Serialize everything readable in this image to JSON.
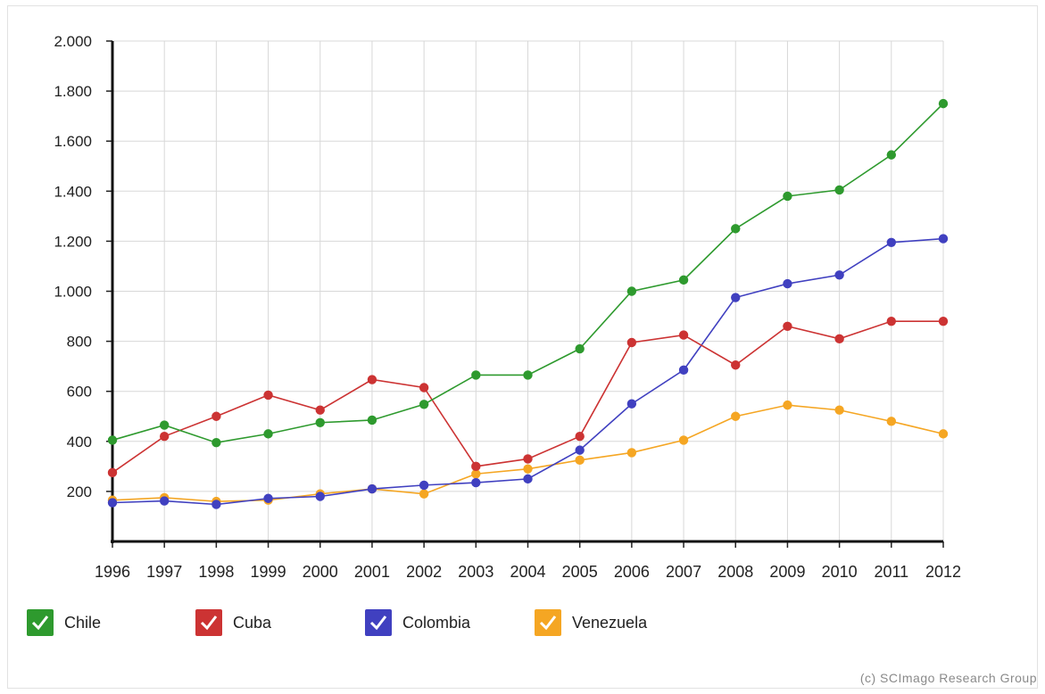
{
  "chart_data": {
    "type": "line",
    "x": [
      "1996",
      "1997",
      "1998",
      "1999",
      "2000",
      "2001",
      "2002",
      "2003",
      "2004",
      "2005",
      "2006",
      "2007",
      "2008",
      "2009",
      "2010",
      "2011",
      "2012"
    ],
    "ylim": [
      0,
      2000
    ],
    "y_ticks": [
      "200",
      "400",
      "600",
      "800",
      "1.000",
      "1.200",
      "1.400",
      "1.600",
      "1.800",
      "2.000"
    ],
    "y_tick_values": [
      200,
      400,
      600,
      800,
      1000,
      1200,
      1400,
      1600,
      1800,
      2000
    ],
    "grid": true,
    "legend_position": "bottom-left",
    "series": [
      {
        "name": "Chile",
        "color": "#2e9a2e",
        "values": [
          405,
          465,
          395,
          430,
          475,
          485,
          548,
          665,
          665,
          770,
          1000,
          1045,
          1250,
          1380,
          1405,
          1545,
          1750
        ]
      },
      {
        "name": "Cuba",
        "color": "#cc3333",
        "values": [
          275,
          420,
          500,
          585,
          525,
          647,
          615,
          300,
          330,
          420,
          795,
          825,
          705,
          860,
          810,
          880,
          880
        ]
      },
      {
        "name": "Colombia",
        "color": "#4040c0",
        "values": [
          155,
          162,
          148,
          172,
          180,
          210,
          225,
          235,
          250,
          365,
          550,
          685,
          975,
          1030,
          1065,
          1195,
          1210
        ]
      },
      {
        "name": "Venezuela",
        "color": "#f5a623",
        "values": [
          165,
          175,
          160,
          165,
          190,
          210,
          190,
          270,
          290,
          325,
          355,
          405,
          500,
          545,
          525,
          480,
          430
        ]
      }
    ]
  },
  "credit": "(c) SCImago Research Group"
}
